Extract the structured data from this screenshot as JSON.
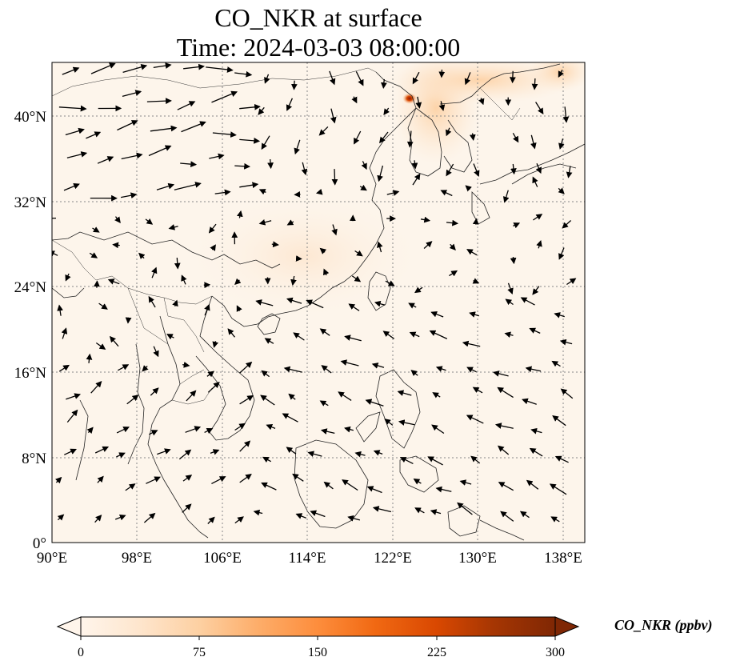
{
  "title": {
    "line1": "CO_NKR at surface",
    "line2": "Time: 2024-03-03 08:00:00"
  },
  "map": {
    "lon_range": [
      90,
      140
    ],
    "lat_range": [
      0,
      45
    ],
    "lon_ticks": [
      "90°E",
      "98°E",
      "106°E",
      "114°E",
      "122°E",
      "130°E",
      "138°E"
    ],
    "lat_ticks": [
      "0°",
      "8°N",
      "16°N",
      "24°N",
      "32°N",
      "40°N"
    ],
    "gridlines": true,
    "field_color_background": "#fdf5eb"
  },
  "colorbar": {
    "label": "CO_NKR (ppbv)",
    "ticks": [
      "0",
      "75",
      "150",
      "225",
      "300"
    ],
    "range": [
      0,
      300
    ],
    "extend": "both",
    "colormap": [
      "#fff5eb",
      "#fee6ce",
      "#fdd0a2",
      "#fdae6b",
      "#fd8d3c",
      "#f16913",
      "#d94801",
      "#a63603",
      "#7f2704"
    ]
  }
}
